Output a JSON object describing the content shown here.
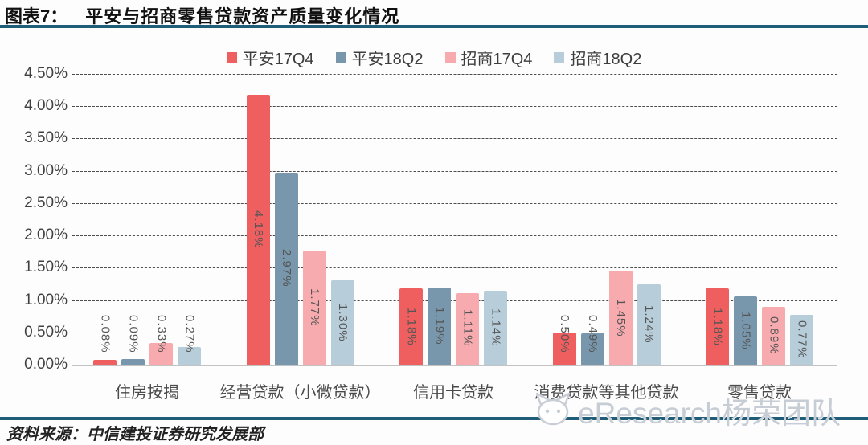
{
  "header": {
    "figure_label": "图表7：",
    "title": "平安与招商零售贷款资产质量变化情况"
  },
  "chart_data": {
    "type": "bar",
    "title": "平安与招商零售贷款资产质量变化情况",
    "categories": [
      "住房按揭",
      "经营贷款（小微贷款）",
      "信用卡贷款",
      "消费贷款等其他贷款",
      "零售贷款"
    ],
    "series": [
      {
        "name": "平安17Q4",
        "color": "#ef5f60",
        "values": [
          0.08,
          4.18,
          1.18,
          0.5,
          1.18
        ]
      },
      {
        "name": "平安18Q2",
        "color": "#7897ac",
        "values": [
          0.09,
          2.97,
          1.19,
          0.49,
          1.05
        ]
      },
      {
        "name": "招商17Q4",
        "color": "#f8abae",
        "values": [
          0.33,
          1.77,
          1.11,
          1.45,
          0.89
        ]
      },
      {
        "name": "招商18Q2",
        "color": "#b7cdda",
        "values": [
          0.27,
          1.3,
          1.14,
          1.24,
          0.77
        ]
      }
    ],
    "value_labels": [
      [
        "0.08%",
        "4.18%",
        "1.18%",
        "0.50%",
        "1.18%"
      ],
      [
        "0.09%",
        "2.97%",
        "1.19%",
        "0.49%",
        "1.05%"
      ],
      [
        "0.33%",
        "1.77%",
        "1.11%",
        "1.45%",
        "0.89%"
      ],
      [
        "0.27%",
        "1.30%",
        "1.14%",
        "1.24%",
        "0.77%"
      ]
    ],
    "xlabel": "",
    "ylabel": "",
    "ylim": [
      0,
      4.5
    ],
    "y_ticks": [
      "0.00%",
      "0.50%",
      "1.00%",
      "1.50%",
      "2.00%",
      "2.50%",
      "3.00%",
      "3.50%",
      "4.00%",
      "4.50%"
    ],
    "grid": "horizontal-dashed",
    "legend_position": "top"
  },
  "watermark": {
    "text": "eResearch杨荣团队"
  },
  "footer": {
    "source": "资料来源：中信建投证券研究发展部"
  }
}
